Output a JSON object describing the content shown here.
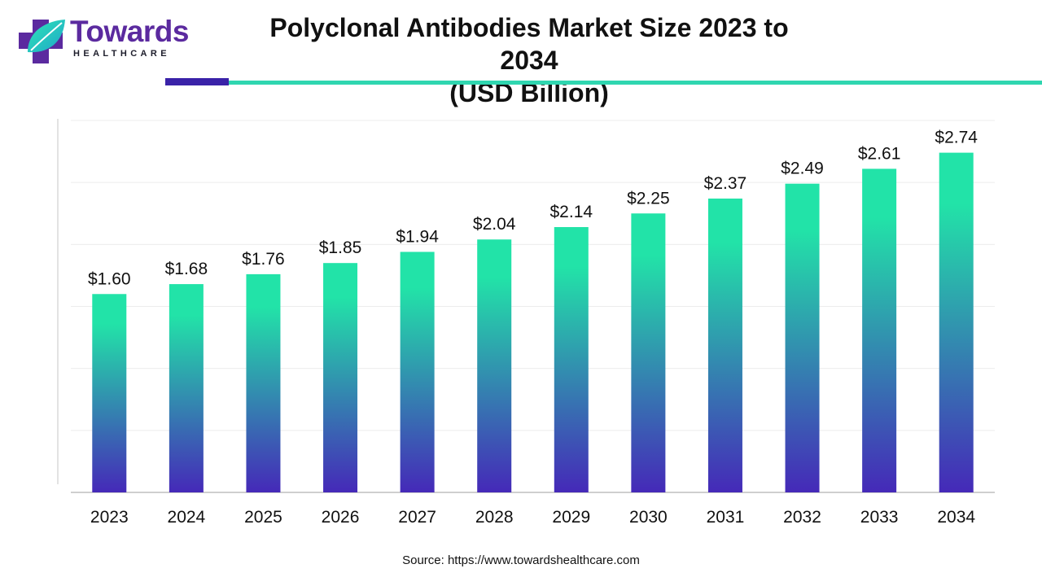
{
  "brand": {
    "name": "Towards",
    "tagline": "HEALTHCARE",
    "primary_color": "#5b2a9f",
    "accent_color": "#2fd6b0"
  },
  "header": {
    "title_line1": "Polyclonal Antibodies Market Size 2023 to 2034",
    "title_line2": "(USD Billion)"
  },
  "footer": {
    "source": "Source: https://www.towardshealthcare.com"
  },
  "chart_data": {
    "type": "bar",
    "title": "Polyclonal Antibodies Market Size 2023 to 2034 (USD Billion)",
    "xlabel": "",
    "ylabel": "",
    "categories": [
      "2023",
      "2024",
      "2025",
      "2026",
      "2027",
      "2028",
      "2029",
      "2030",
      "2031",
      "2032",
      "2033",
      "2034"
    ],
    "values": [
      1.6,
      1.68,
      1.76,
      1.85,
      1.94,
      2.04,
      2.14,
      2.25,
      2.37,
      2.49,
      2.61,
      2.74
    ],
    "value_labels": [
      "$1.60",
      "$1.68",
      "$1.76",
      "$1.85",
      "$1.94",
      "$2.04",
      "$2.14",
      "$2.25",
      "$2.37",
      "$2.49",
      "$2.61",
      "$2.74"
    ],
    "ylim": [
      0,
      3.0
    ],
    "grid": true,
    "legend": "none",
    "bar_gradient": {
      "top": "#22e3a8",
      "bottom": "#4529b8"
    }
  }
}
